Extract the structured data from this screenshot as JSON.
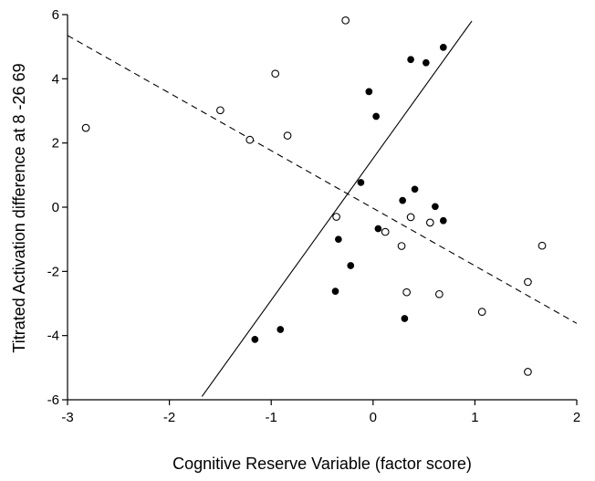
{
  "chart_data": {
    "type": "scatter",
    "title": "",
    "xlabel": "Cognitive Reserve Variable (factor score)",
    "ylabel": "Titrated Activation difference at 8 -26 69",
    "xlim": [
      -3,
      2
    ],
    "ylim": [
      -6,
      6
    ],
    "x_ticks": [
      -3,
      -2,
      -1,
      0,
      1,
      2
    ],
    "y_ticks": [
      -6,
      -4,
      -2,
      0,
      2,
      4,
      6
    ],
    "x_tick_labels": [
      "-3",
      "-2",
      "-1",
      "0",
      "1",
      "2"
    ],
    "y_tick_labels": [
      "-6",
      "-4",
      "-2",
      "0",
      "2",
      "4",
      "6"
    ],
    "grid": false,
    "legend": "none",
    "series": [
      {
        "marker": "filled-circle",
        "points": [
          {
            "x": -1.16,
            "y": -4.12
          },
          {
            "x": -0.91,
            "y": -3.81
          },
          {
            "x": -0.37,
            "y": -2.62
          },
          {
            "x": -0.22,
            "y": -1.82
          },
          {
            "x": -0.34,
            "y": -1.0
          },
          {
            "x": -0.12,
            "y": 0.77
          },
          {
            "x": -0.04,
            "y": 3.6
          },
          {
            "x": 0.03,
            "y": 2.83
          },
          {
            "x": 0.05,
            "y": -0.67
          },
          {
            "x": 0.29,
            "y": 0.21
          },
          {
            "x": 0.31,
            "y": -3.47
          },
          {
            "x": 0.37,
            "y": 4.6
          },
          {
            "x": 0.41,
            "y": 0.56
          },
          {
            "x": 0.52,
            "y": 4.5
          },
          {
            "x": 0.61,
            "y": 0.02
          },
          {
            "x": 0.69,
            "y": 4.98
          },
          {
            "x": 0.69,
            "y": -0.42
          }
        ]
      },
      {
        "marker": "open-circle",
        "points": [
          {
            "x": -2.82,
            "y": 2.47
          },
          {
            "x": -1.5,
            "y": 3.02
          },
          {
            "x": -1.21,
            "y": 2.1
          },
          {
            "x": -0.96,
            "y": 4.16
          },
          {
            "x": -0.84,
            "y": 2.23
          },
          {
            "x": -0.27,
            "y": 5.82
          },
          {
            "x": -0.36,
            "y": -0.3
          },
          {
            "x": 0.12,
            "y": -0.77
          },
          {
            "x": 0.28,
            "y": -1.21
          },
          {
            "x": 0.33,
            "y": -2.65
          },
          {
            "x": 0.37,
            "y": -0.31
          },
          {
            "x": 0.56,
            "y": -0.48
          },
          {
            "x": 0.65,
            "y": -2.71
          },
          {
            "x": 1.07,
            "y": -3.26
          },
          {
            "x": 1.52,
            "y": -2.33
          },
          {
            "x": 1.52,
            "y": -5.13
          },
          {
            "x": 1.66,
            "y": -1.2
          }
        ]
      }
    ],
    "fit_lines": [
      {
        "style": "solid",
        "from": {
          "x": -1.68,
          "y": -5.9
        },
        "to": {
          "x": 0.97,
          "y": 5.8
        }
      },
      {
        "style": "dashed",
        "from": {
          "x": -3.0,
          "y": 5.35
        },
        "to": {
          "x": 2.0,
          "y": -3.62
        }
      }
    ]
  },
  "colors": {
    "marker": "#000000",
    "axis": "#000000",
    "background": "#ffffff"
  }
}
